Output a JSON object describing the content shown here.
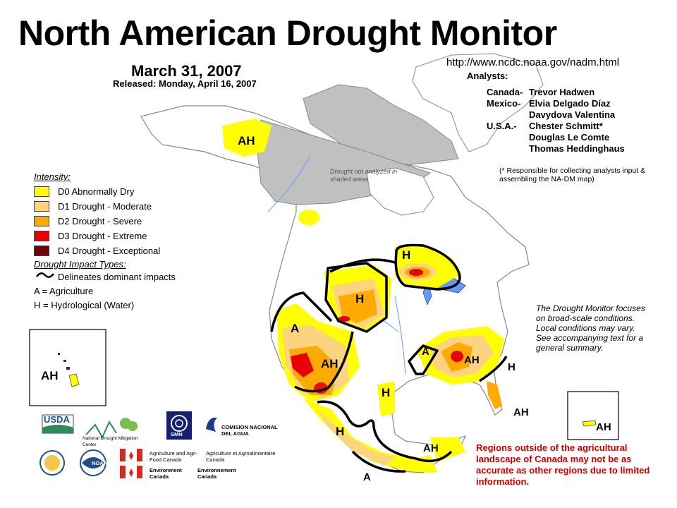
{
  "title": "North American Drought Monitor",
  "date": "March 31, 2007",
  "released": "Released: Monday, April 16, 2007",
  "url": "http://www.ncdc.noaa.gov/nadm.html",
  "analysts": {
    "heading": "Analysts:",
    "rows": [
      {
        "country": "Canada-",
        "name": "Trevor Hadwen"
      },
      {
        "country": "Mexico-",
        "name": "Elvia Delgado Díaz"
      },
      {
        "country": "",
        "name": "Davydova Valentina"
      },
      {
        "country": "U.S.A.-",
        "name": "Chester Schmitt*"
      },
      {
        "country": "",
        "name": "Douglas Le Comte"
      },
      {
        "country": "",
        "name": "Thomas Heddinghaus"
      }
    ],
    "footnote": "(* Responsible for collecting analysts input & assembling the NA-DM map)"
  },
  "shaded_note": "Drought not analyzed in shaded areas",
  "legend": {
    "title": "Intensity:",
    "items": [
      {
        "label": "D0 Abnormally Dry",
        "color": "#ffff00"
      },
      {
        "label": "D1 Drought - Moderate",
        "color": "#fcd37f"
      },
      {
        "label": "D2 Drought - Severe",
        "color": "#ffaa00"
      },
      {
        "label": "D3 Drought - Extreme",
        "color": "#e60000"
      },
      {
        "label": "D4 Drought - Exceptional",
        "color": "#730000"
      }
    ]
  },
  "impacts": {
    "title": "Drought Impact Types:",
    "line_label": "Delineates dominant impacts",
    "a_label": "A = Agriculture",
    "h_label": "H = Hydrological (Water)"
  },
  "note": "The Drought Monitor focuses on broad-scale conditions. Local conditions may vary. See accompanying text for a general summary.",
  "warning": "Regions outside of the agricultural landscape of Canada may not be as accurate as other regions due to limited information.",
  "map_labels": {
    "alaska": "AH",
    "hawaii": "AH",
    "puerto_rico": "AH",
    "prairies": "H",
    "great_lakes": "H",
    "west": "A",
    "southwest": "AH",
    "south_texas": "H",
    "southeast_a": "A",
    "southeast_ah": "AH",
    "florida_h": "H",
    "florida_ah": "AH",
    "mexico_w": "H",
    "mexico_s": "A",
    "yucatan": "AH"
  },
  "logos": {
    "usda": "USDA",
    "ndmc": "National Drought Mitigation Center",
    "smn": "SMN",
    "conagua": "COMISION NACIONAL DEL AGUA",
    "noaa": "NOAA",
    "aafc_en": "Agriculture and Agri-Food Canada",
    "aafc_fr": "Agriculture et Agroalimentaire Canada",
    "ec_en": "Environment Canada",
    "ec_fr": "Environnement Canada"
  },
  "colors": {
    "land": "#ffffff",
    "not_analyzed": "#c0c0c0",
    "water": "#6699ff",
    "border": "#888888"
  }
}
